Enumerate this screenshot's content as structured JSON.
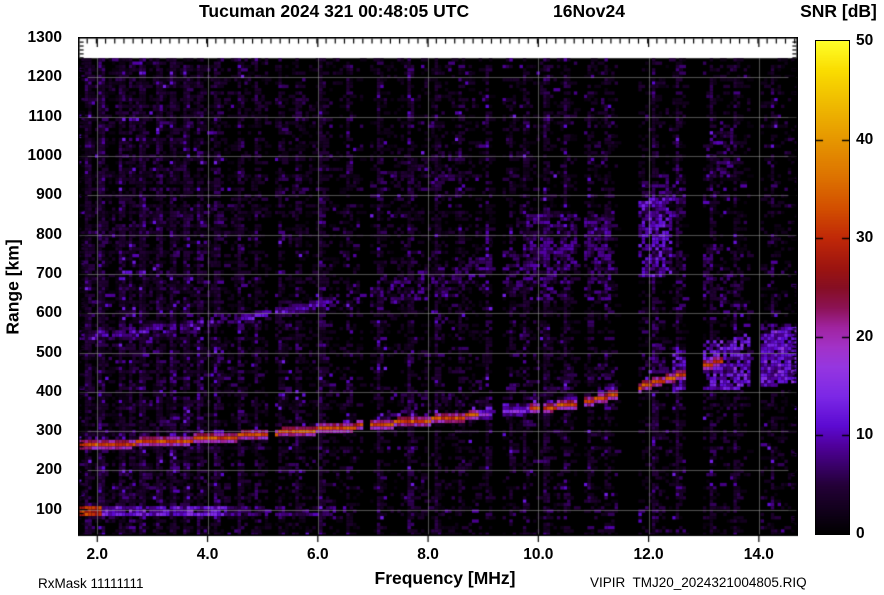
{
  "header": {
    "title": "Tucuman 2024 321 00:48:05 UTC",
    "date": "16Nov24"
  },
  "colorbar": {
    "title": "SNR [dB]",
    "tick_values": [
      50,
      40,
      30,
      20,
      10,
      0
    ],
    "tick_labels": [
      "50",
      "40",
      "30",
      "20",
      "10",
      "0"
    ],
    "min": 0,
    "max": 50
  },
  "axes": {
    "x": {
      "label": "Frequency [MHz]",
      "tick_values": [
        2.0,
        4.0,
        6.0,
        8.0,
        10.0,
        12.0,
        14.0
      ],
      "tick_labels": [
        "2.0",
        "4.0",
        "6.0",
        "8.0",
        "10.0",
        "12.0",
        "14.0"
      ]
    },
    "y": {
      "label": "Range [km]",
      "tick_values": [
        1300,
        1200,
        1100,
        1000,
        900,
        800,
        700,
        600,
        500,
        400,
        300,
        200,
        100
      ],
      "tick_labels": [
        "1300",
        "1200",
        "1100",
        "1000",
        "900",
        "800",
        "700",
        "600",
        "500",
        "400",
        "300",
        "200",
        "100"
      ]
    }
  },
  "footer": {
    "rx_mask": "RxMask 11111111",
    "file_label": "VIPIR  TMJ20_2024321004805.RIQ"
  },
  "chart_data": {
    "type": "heatmap",
    "title": "Tucuman 2024 321 00:48:05 UTC  16Nov24",
    "xlabel": "Frequency [MHz]",
    "ylabel": "Range [km]",
    "zlabel": "SNR [dB]",
    "freq_range_mhz": [
      1.65,
      14.71
    ],
    "range_km": [
      33,
      1303
    ],
    "data_top_km": 1249,
    "snr_range_db": [
      0,
      50
    ],
    "grid": "on",
    "seed": 20243211,
    "colormap_stops": [
      [
        0,
        "#000000"
      ],
      [
        5,
        "#240038"
      ],
      [
        9,
        "#50009c"
      ],
      [
        11,
        "#5c0ad2"
      ],
      [
        14,
        "#7c28e6"
      ],
      [
        17,
        "#9636e0"
      ],
      [
        19,
        "#a232c8"
      ],
      [
        21,
        "#a024a0"
      ],
      [
        23,
        "#8c1254"
      ],
      [
        25,
        "#860e24"
      ],
      [
        27,
        "#9c1410"
      ],
      [
        30,
        "#c02808"
      ],
      [
        33,
        "#d24e00"
      ],
      [
        36,
        "#dc7000"
      ],
      [
        40,
        "#e69600"
      ],
      [
        44,
        "#f0be00"
      ],
      [
        47,
        "#fadc00"
      ],
      [
        50,
        "#ffff28"
      ]
    ],
    "main_trace_km": [
      [
        1.65,
        262
      ],
      [
        2.0,
        265
      ],
      [
        2.5,
        268
      ],
      [
        3.0,
        272
      ],
      [
        3.5,
        276
      ],
      [
        4.0,
        281
      ],
      [
        4.5,
        286
      ],
      [
        5.0,
        291
      ],
      [
        5.5,
        297
      ],
      [
        6.0,
        303
      ],
      [
        6.5,
        309
      ],
      [
        7.0,
        315
      ],
      [
        7.5,
        321
      ],
      [
        8.0,
        327
      ],
      [
        8.5,
        334
      ],
      [
        9.0,
        341
      ],
      [
        9.5,
        349
      ],
      [
        10.0,
        357
      ],
      [
        10.5,
        366
      ],
      [
        11.0,
        379
      ],
      [
        11.5,
        397
      ],
      [
        12.0,
        420
      ],
      [
        12.4,
        436
      ],
      [
        12.8,
        455
      ],
      [
        13.2,
        476
      ],
      [
        13.6,
        494
      ]
    ],
    "trace_f_max": 13.35,
    "trace_weak_band_mhz": [
      8.95,
      9.9
    ],
    "hop2_factor": 2.04,
    "hop3_factor": 3.06,
    "e_region": {
      "km": [
        84,
        110
      ],
      "f_max": 6.8,
      "strong_f_max": 2.07,
      "red_blob_km": [
        87,
        102
      ]
    },
    "valley_band": {
      "km": [
        186,
        212
      ],
      "f_max": 3.7
    },
    "cusp": {
      "f": [
        12.45,
        14.71
      ],
      "base_km": 397,
      "lo_slope": 13,
      "top_km": 510,
      "hi_slope": 25
    },
    "diffuse_patches": [
      {
        "f": [
          7.4,
          8.6
        ],
        "km": [
          890,
          1010
        ],
        "p": 0.2,
        "snr": [
          3,
          7
        ]
      },
      {
        "f": [
          9.8,
          11.3
        ],
        "km": [
          640,
          850
        ],
        "p": 0.4,
        "snr": [
          4,
          10
        ]
      },
      {
        "f": [
          11.85,
          12.45
        ],
        "km": [
          700,
          900
        ],
        "p": 0.55,
        "snr": [
          6,
          14
        ]
      },
      {
        "f": [
          12.6,
          13.5
        ],
        "km": [
          620,
          780
        ],
        "p": 0.3,
        "snr": [
          4,
          9
        ]
      },
      {
        "f": [
          14.05,
          14.71
        ],
        "km": [
          460,
          580
        ],
        "p": 0.45,
        "snr": [
          5,
          11
        ]
      }
    ],
    "rfi_stripes": [
      [
        1.78,
        5
      ],
      [
        2.05,
        7
      ],
      [
        2.45,
        4
      ],
      [
        2.62,
        3
      ],
      [
        2.78,
        8
      ],
      [
        3.1,
        4
      ],
      [
        3.32,
        6
      ],
      [
        3.6,
        5
      ],
      [
        3.85,
        3
      ],
      [
        4.12,
        3
      ],
      [
        4.55,
        4
      ],
      [
        4.9,
        3
      ],
      [
        5.3,
        3
      ],
      [
        5.62,
        3
      ],
      [
        6.08,
        5
      ],
      [
        6.55,
        3
      ],
      [
        7.12,
        4
      ],
      [
        7.65,
        5
      ],
      [
        8.12,
        4
      ],
      [
        8.55,
        3
      ],
      [
        9.06,
        3
      ],
      [
        9.5,
        3
      ],
      [
        9.78,
        4
      ],
      [
        10.12,
        5
      ],
      [
        10.5,
        4
      ],
      [
        10.95,
        3
      ],
      [
        11.25,
        3
      ],
      [
        12.12,
        5
      ],
      [
        12.5,
        4
      ],
      [
        13.12,
        4
      ],
      [
        13.55,
        4
      ],
      [
        14.22,
        3
      ]
    ],
    "masked_bands_mhz": [
      [
        5.1,
        5.18
      ],
      [
        6.83,
        6.9
      ],
      [
        9.18,
        9.31
      ],
      [
        10.72,
        10.81
      ],
      [
        11.5,
        11.76
      ],
      [
        12.72,
        12.93
      ],
      [
        13.86,
        14.02
      ]
    ]
  }
}
